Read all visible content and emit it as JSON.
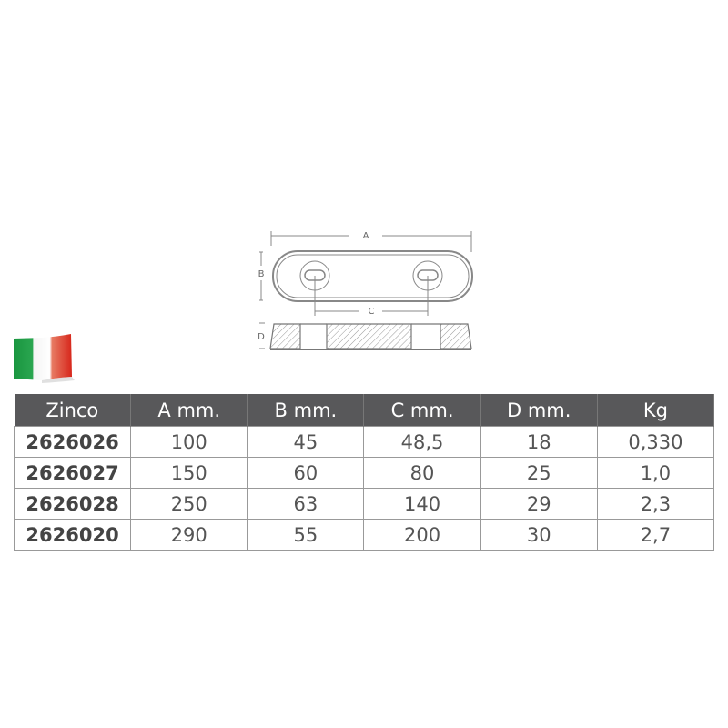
{
  "diagram": {
    "labels": {
      "a": "A",
      "b": "B",
      "c": "C",
      "d": "D"
    }
  },
  "flag": {
    "colors": [
      "#1a9640",
      "#ffffff",
      "#e1251b"
    ]
  },
  "table": {
    "headers": [
      "Zinco",
      "A mm.",
      "B mm.",
      "C mm.",
      "D mm.",
      "Kg"
    ],
    "rows": [
      [
        "2626026",
        "100",
        "45",
        "48,5",
        "18",
        "0,330"
      ],
      [
        "2626027",
        "150",
        "60",
        "80",
        "25",
        "1,0"
      ],
      [
        "2626028",
        "250",
        "63",
        "140",
        "29",
        "2,3"
      ],
      [
        "2626020",
        "290",
        "55",
        "200",
        "30",
        "2,7"
      ]
    ],
    "header_color": "#58585a"
  }
}
